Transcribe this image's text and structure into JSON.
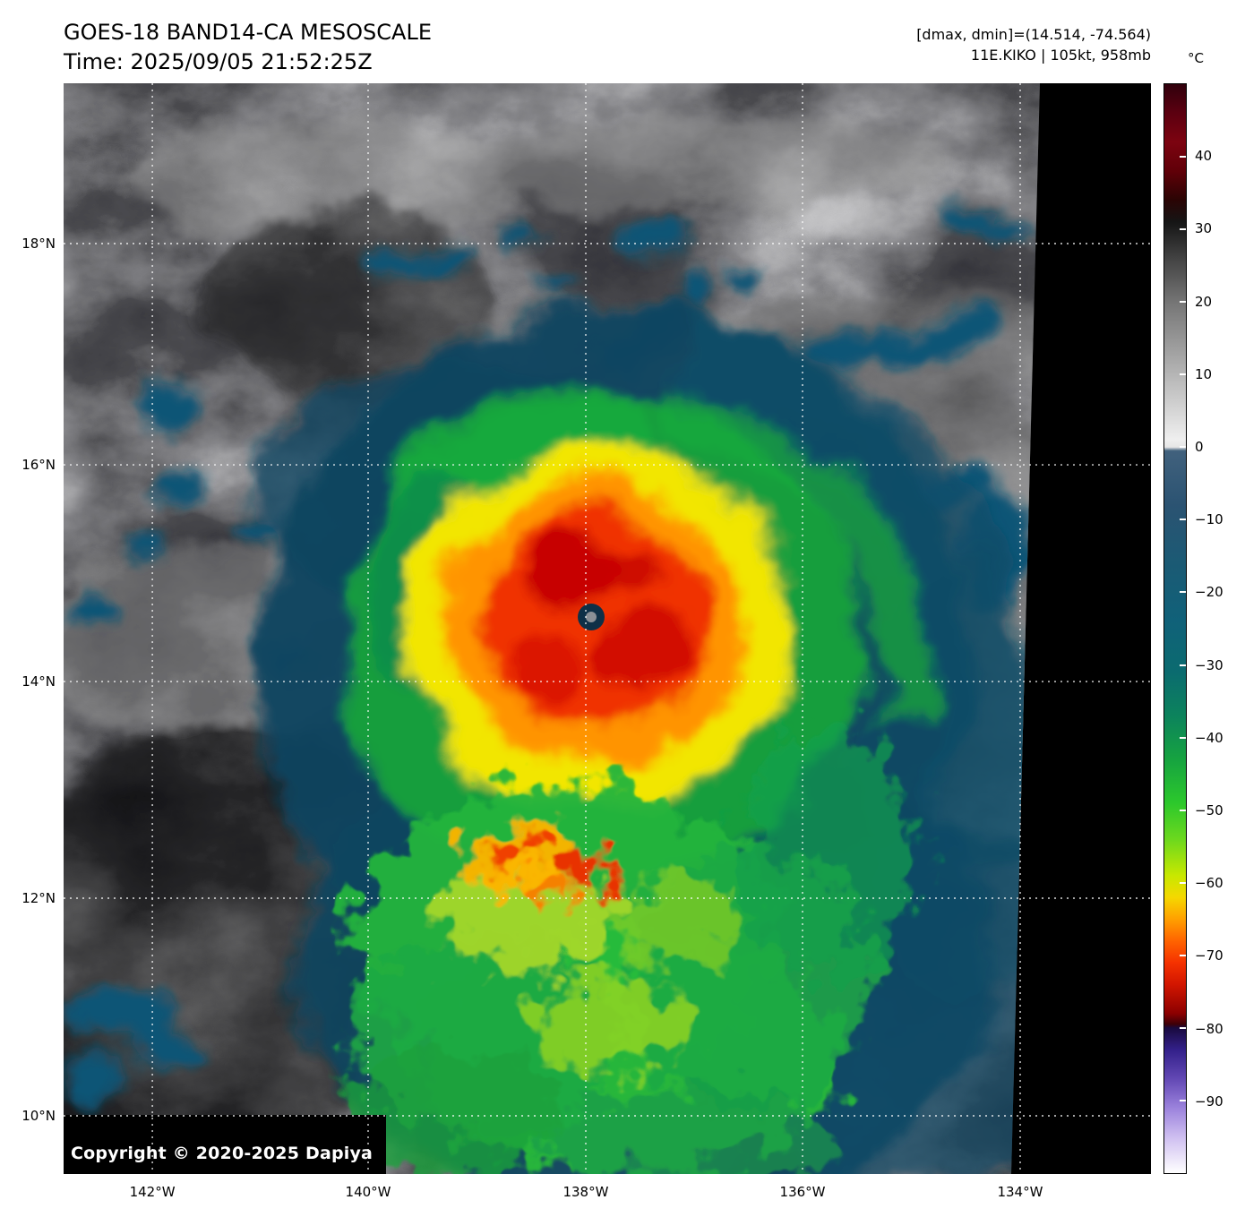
{
  "header": {
    "title": "GOES-18 BAND14-CA MESOSCALE",
    "time": "Time: 2025/09/05 21:52:25Z",
    "range": "[dmax, dmin]=(14.514, -74.564)",
    "storm": "11E.KIKO | 105kt, 958mb"
  },
  "footer": {
    "copyright": "Copyright © 2020-2025 Dapiya"
  },
  "colorbar": {
    "unit": "°C",
    "max": 50,
    "min": -100,
    "ticks": [
      40,
      30,
      20,
      10,
      0,
      -10,
      -20,
      -30,
      -40,
      -50,
      -60,
      -70,
      -80,
      -90
    ],
    "stops": [
      {
        "value": 50,
        "color": "#30000c"
      },
      {
        "value": 46,
        "color": "#5c0010"
      },
      {
        "value": 42,
        "color": "#7c0310"
      },
      {
        "value": 38,
        "color": "#600008"
      },
      {
        "value": 34,
        "color": "#2a0404"
      },
      {
        "value": 31,
        "color": "#151515"
      },
      {
        "value": 27,
        "color": "#3a3a3a"
      },
      {
        "value": 20,
        "color": "#757575"
      },
      {
        "value": 13,
        "color": "#a2a2a2"
      },
      {
        "value": 6,
        "color": "#cfcfcf"
      },
      {
        "value": 1,
        "color": "#efefef"
      },
      {
        "value": 0,
        "color": "#e6e6e6"
      },
      {
        "value": -0.5,
        "color": "#41617d"
      },
      {
        "value": -8,
        "color": "#2b5372"
      },
      {
        "value": -16,
        "color": "#1b5a74"
      },
      {
        "value": -24,
        "color": "#106179"
      },
      {
        "value": -31,
        "color": "#0b6b6f"
      },
      {
        "value": -37,
        "color": "#0c835c"
      },
      {
        "value": -43,
        "color": "#16a340"
      },
      {
        "value": -49,
        "color": "#2cc82c"
      },
      {
        "value": -54,
        "color": "#6cd81e"
      },
      {
        "value": -59,
        "color": "#c8e800"
      },
      {
        "value": -62,
        "color": "#f5d800"
      },
      {
        "value": -65,
        "color": "#ffa000"
      },
      {
        "value": -68,
        "color": "#ff6400"
      },
      {
        "value": -71,
        "color": "#f53200"
      },
      {
        "value": -74,
        "color": "#d21600"
      },
      {
        "value": -78,
        "color": "#8c0000"
      },
      {
        "value": -79.5,
        "color": "#3c0008"
      },
      {
        "value": -80,
        "color": "#190a3e"
      },
      {
        "value": -83,
        "color": "#33208a"
      },
      {
        "value": -87,
        "color": "#6248b4"
      },
      {
        "value": -91,
        "color": "#9b82dc"
      },
      {
        "value": -95,
        "color": "#cebef0"
      },
      {
        "value": -100,
        "color": "#ffffff"
      }
    ]
  },
  "axes": {
    "lat_ticks": [
      {
        "label": "18°N",
        "f": 0.147
      },
      {
        "label": "16°N",
        "f": 0.3498
      },
      {
        "label": "14°N",
        "f": 0.5485
      },
      {
        "label": "12°N",
        "f": 0.7471
      },
      {
        "label": "10°N",
        "f": 0.9466
      }
    ],
    "lon_ticks": [
      {
        "label": "142°W",
        "f": 0.0816
      },
      {
        "label": "140°W",
        "f": 0.2801
      },
      {
        "label": "138°W",
        "f": 0.4802
      },
      {
        "label": "136°W",
        "f": 0.6796
      },
      {
        "label": "134°W",
        "f": 0.8797
      }
    ]
  },
  "colors": {
    "page_background": "#ffffff",
    "plot_background": "#000000",
    "grid": "#ffffff",
    "text": "#000000",
    "copyright_text": "#ffffff"
  },
  "map_data": {
    "type": "satellite-ir-image",
    "satellite": "GOES-18",
    "band": "BAND14",
    "sector": "CA MESOSCALE",
    "time_utc": "2025/09/05 21:52:25Z",
    "dmax": 14.514,
    "dmin": -74.564,
    "storm_id": "11E",
    "storm_name": "KIKO",
    "intensity_kt": 105,
    "pressure_mb": 958,
    "lat_labels_n": [
      18,
      16,
      14,
      12,
      10
    ],
    "lon_labels_w": [
      142,
      140,
      138,
      136,
      134
    ],
    "colorbar_range_c": [
      -100,
      50
    ],
    "colorbar_tick_step_c": 10
  }
}
